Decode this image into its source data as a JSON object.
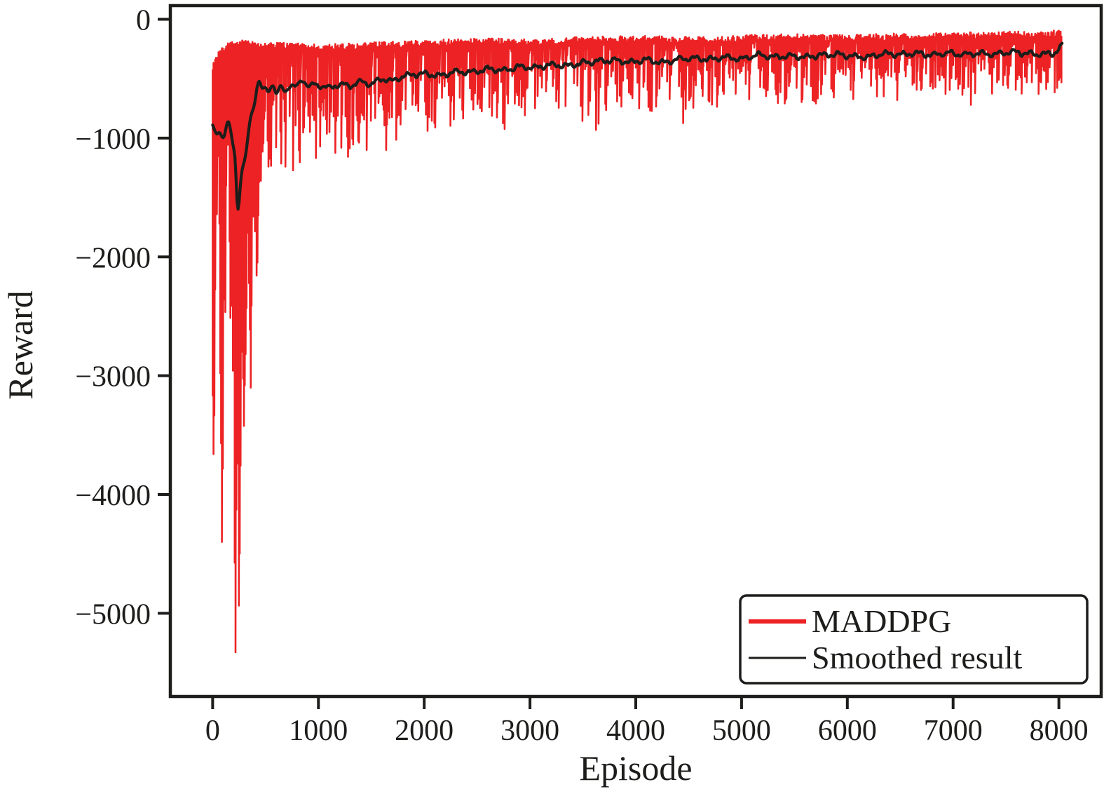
{
  "figure": {
    "background": "#ffffff",
    "axes_color": "#1d1d1b"
  },
  "chart_data": {
    "type": "line",
    "title": "",
    "xlabel": "Episode",
    "ylabel": "Reward",
    "xlim": [
      -400,
      8400
    ],
    "ylim": [
      -5700,
      115
    ],
    "grid": false,
    "xticks": [
      {
        "value": 0,
        "label": "0"
      },
      {
        "value": 1000,
        "label": "1000"
      },
      {
        "value": 2000,
        "label": "2000"
      },
      {
        "value": 3000,
        "label": "3000"
      },
      {
        "value": 4000,
        "label": "4000"
      },
      {
        "value": 5000,
        "label": "5000"
      },
      {
        "value": 6000,
        "label": "6000"
      },
      {
        "value": 7000,
        "label": "7000"
      },
      {
        "value": 8000,
        "label": "8000"
      }
    ],
    "yticks": [
      {
        "value": 0,
        "label": "0"
      },
      {
        "value": -1000,
        "label": "−1000"
      },
      {
        "value": -2000,
        "label": "−2000"
      },
      {
        "value": -3000,
        "label": "−3000"
      },
      {
        "value": -4000,
        "label": "−4000"
      },
      {
        "value": -5000,
        "label": "−5000"
      }
    ],
    "legend": {
      "position": "lower right",
      "entries": [
        {
          "label": "MADDPG",
          "color": "#ed2224",
          "line_width": 6
        },
        {
          "label": "Smoothed result",
          "color": "#1d1d1b",
          "line_width": 3
        }
      ]
    },
    "series": [
      {
        "name": "MADDPG",
        "color": "#ed2224",
        "style": "raw-noisy-trace",
        "episode_range": [
          0,
          8030
        ],
        "upper_envelope": [
          [
            0,
            -400
          ],
          [
            60,
            -300
          ],
          [
            150,
            -230
          ],
          [
            300,
            -200
          ],
          [
            450,
            -240
          ],
          [
            700,
            -230
          ],
          [
            1000,
            -250
          ],
          [
            1500,
            -230
          ],
          [
            2000,
            -215
          ],
          [
            2500,
            -195
          ],
          [
            3000,
            -205
          ],
          [
            3500,
            -185
          ],
          [
            4000,
            -175
          ],
          [
            4500,
            -185
          ],
          [
            5000,
            -170
          ],
          [
            5500,
            -160
          ],
          [
            6000,
            -168
          ],
          [
            6500,
            -155
          ],
          [
            7000,
            -150
          ],
          [
            7500,
            -140
          ],
          [
            8030,
            -130
          ]
        ],
        "lower_envelope": [
          [
            0,
            -2100
          ],
          [
            100,
            -2500
          ],
          [
            200,
            -2700
          ],
          [
            300,
            -2500
          ],
          [
            380,
            -2300
          ],
          [
            430,
            -1600
          ],
          [
            470,
            -1300
          ],
          [
            600,
            -1250
          ],
          [
            800,
            -1300
          ],
          [
            1000,
            -1150
          ],
          [
            1300,
            -1180
          ],
          [
            1600,
            -1050
          ],
          [
            2000,
            -950
          ],
          [
            2500,
            -860
          ],
          [
            3000,
            -820
          ],
          [
            3500,
            -800
          ],
          [
            4000,
            -780
          ],
          [
            4500,
            -760
          ],
          [
            5000,
            -750
          ],
          [
            5500,
            -720
          ],
          [
            6000,
            -700
          ],
          [
            6500,
            -690
          ],
          [
            7000,
            -680
          ],
          [
            7500,
            -650
          ],
          [
            8030,
            -620
          ]
        ],
        "spikes": [
          [
            10,
            -3850
          ],
          [
            90,
            -4570
          ],
          [
            215,
            -5435
          ],
          [
            250,
            -5150
          ],
          [
            295,
            -3500
          ],
          [
            360,
            -3100
          ],
          [
            420,
            -2450
          ],
          [
            530,
            -1360
          ],
          [
            820,
            -1370
          ],
          [
            1325,
            -1180
          ],
          [
            1640,
            -1100
          ],
          [
            2100,
            -1000
          ]
        ]
      },
      {
        "name": "Smoothed result",
        "color": "#1d1d1b",
        "style": "smoothed",
        "points": [
          [
            0,
            -890
          ],
          [
            25,
            -950
          ],
          [
            45,
            -985
          ],
          [
            65,
            -930
          ],
          [
            90,
            -1000
          ],
          [
            110,
            -1005
          ],
          [
            128,
            -905
          ],
          [
            146,
            -820
          ],
          [
            165,
            -895
          ],
          [
            185,
            -1020
          ],
          [
            205,
            -1125
          ],
          [
            220,
            -1160
          ],
          [
            232,
            -1740
          ],
          [
            246,
            -1690
          ],
          [
            258,
            -1440
          ],
          [
            272,
            -1265
          ],
          [
            288,
            -1215
          ],
          [
            302,
            -1205
          ],
          [
            318,
            -1120
          ],
          [
            332,
            -1000
          ],
          [
            346,
            -885
          ],
          [
            362,
            -795
          ],
          [
            378,
            -765
          ],
          [
            392,
            -740
          ],
          [
            406,
            -685
          ],
          [
            420,
            -555
          ],
          [
            434,
            -505
          ],
          [
            448,
            -502
          ],
          [
            460,
            -575
          ],
          [
            472,
            -618
          ],
          [
            486,
            -588
          ],
          [
            500,
            -562
          ],
          [
            515,
            -600
          ],
          [
            530,
            -638
          ],
          [
            546,
            -578
          ],
          [
            562,
            -522
          ],
          [
            580,
            -558
          ],
          [
            600,
            -648
          ],
          [
            622,
            -598
          ],
          [
            645,
            -558
          ],
          [
            668,
            -592
          ],
          [
            690,
            -615
          ],
          [
            712,
            -588
          ],
          [
            735,
            -545
          ],
          [
            760,
            -558
          ],
          [
            785,
            -572
          ],
          [
            810,
            -552
          ],
          [
            835,
            -508
          ],
          [
            862,
            -515
          ],
          [
            888,
            -548
          ],
          [
            915,
            -578
          ],
          [
            945,
            -540
          ],
          [
            975,
            -548
          ],
          [
            1000,
            -555
          ],
          [
            1100,
            -580
          ],
          [
            1200,
            -545
          ],
          [
            1300,
            -565
          ],
          [
            1400,
            -522
          ],
          [
            1500,
            -548
          ],
          [
            1600,
            -500
          ],
          [
            1700,
            -520
          ],
          [
            1800,
            -478
          ],
          [
            1900,
            -465
          ],
          [
            2000,
            -458
          ],
          [
            2150,
            -475
          ],
          [
            2300,
            -440
          ],
          [
            2450,
            -448
          ],
          [
            2600,
            -415
          ],
          [
            2750,
            -432
          ],
          [
            2900,
            -398
          ],
          [
            3050,
            -408
          ],
          [
            3200,
            -380
          ],
          [
            3350,
            -395
          ],
          [
            3500,
            -368
          ],
          [
            3650,
            -352
          ],
          [
            3800,
            -345
          ],
          [
            3950,
            -362
          ],
          [
            4100,
            -340
          ],
          [
            4250,
            -368
          ],
          [
            4400,
            -335
          ],
          [
            4550,
            -328
          ],
          [
            4700,
            -338
          ],
          [
            4850,
            -318
          ],
          [
            5000,
            -338
          ],
          [
            5150,
            -298
          ],
          [
            5300,
            -318
          ],
          [
            5450,
            -308
          ],
          [
            5600,
            -318
          ],
          [
            5750,
            -302
          ],
          [
            5900,
            -295
          ],
          [
            6050,
            -312
          ],
          [
            6200,
            -318
          ],
          [
            6350,
            -288
          ],
          [
            6500,
            -298
          ],
          [
            6650,
            -285
          ],
          [
            6800,
            -302
          ],
          [
            6950,
            -282
          ],
          [
            7100,
            -298
          ],
          [
            7250,
            -285
          ],
          [
            7400,
            -295
          ],
          [
            7550,
            -272
          ],
          [
            7700,
            -288
          ],
          [
            7850,
            -295
          ],
          [
            7950,
            -288
          ],
          [
            8030,
            -225
          ]
        ]
      }
    ]
  }
}
